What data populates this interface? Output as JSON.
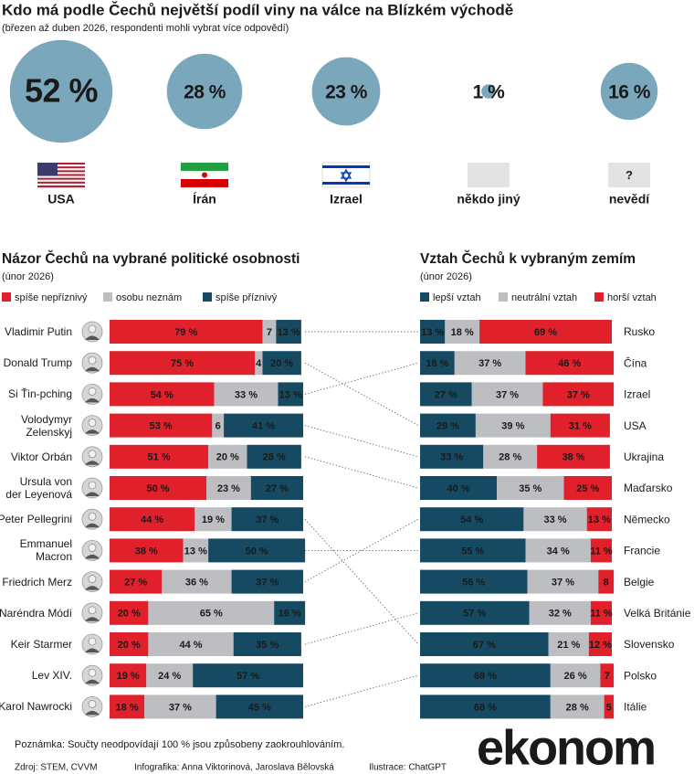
{
  "header": {
    "title": "Kdo má podle Čechů největší podíl viny na válce na Blízkém východě",
    "subtitle": "(březen až duben 2026, respondenti mohli vybrat více odpovědí)"
  },
  "chart_data": [
    {
      "type": "bubble",
      "categories": [
        "USA",
        "Írán",
        "Izrael",
        "někdo jiný",
        "nevědí"
      ],
      "values": [
        52,
        28,
        23,
        1,
        16
      ],
      "value_labels": [
        "52 %",
        "28 %",
        "23 %",
        "1 %",
        "16 %"
      ],
      "color": "#7ba7bd",
      "unknown_mark": "?"
    },
    {
      "type": "stacked-bar",
      "title": "Názor Čechů na vybrané politické osobnosti",
      "subtitle": "(únor 2026)",
      "categories": [
        "Vladimir Putin",
        "Donald Trump",
        "Si Ťin-pching",
        "Volodymyr\nZelenskyj",
        "Viktor Orbán",
        "Ursula von\nder Leyenová",
        "Peter Pellegrini",
        "Emmanuel\nMacron",
        "Friedrich Merz",
        "Naréndra Módí",
        "Keir Starmer",
        "Lev XIV.",
        "Karol Nawrocki"
      ],
      "series": [
        {
          "name": "spíše nepříznivý",
          "color": "#e0202a",
          "values": [
            79,
            75,
            54,
            53,
            51,
            50,
            44,
            38,
            27,
            20,
            20,
            19,
            18
          ],
          "value_labels": [
            "79 %",
            "75 %",
            "54 %",
            "53 %",
            "51 %",
            "50 %",
            "44 %",
            "38 %",
            "27 %",
            "20 %",
            "20 %",
            "19 %",
            "18 %"
          ]
        },
        {
          "name": "osobu neznám",
          "color": "#bcbec2",
          "values": [
            7,
            4,
            33,
            6,
            20,
            23,
            19,
            13,
            36,
            65,
            44,
            24,
            37
          ],
          "value_labels": [
            "7",
            "4",
            "33 %",
            "6",
            "20 %",
            "23 %",
            "19 %",
            "13 %",
            "36 %",
            "65 %",
            "44 %",
            "24 %",
            "37 %"
          ]
        },
        {
          "name": "spíše příznivý",
          "color": "#164a62",
          "values": [
            13,
            20,
            13,
            41,
            28,
            27,
            37,
            50,
            37,
            16,
            35,
            57,
            45
          ],
          "value_labels": [
            "13 %",
            "20 %",
            "13 %",
            "41 %",
            "28 %",
            "27 %",
            "37 %",
            "50 %",
            "37 %",
            "16 %",
            "35 %",
            "57 %",
            "45 %"
          ]
        }
      ]
    },
    {
      "type": "stacked-bar",
      "title": "Vztah Čechů k vybraným zemím",
      "subtitle": "(únor 2026)",
      "categories": [
        "Rusko",
        "Čína",
        "Izrael",
        "USA",
        "Ukrajina",
        "Maďarsko",
        "Německo",
        "Francie",
        "Belgie",
        "Velká Británie",
        "Slovensko",
        "Polsko",
        "Itálie"
      ],
      "series": [
        {
          "name": "lepší vztah",
          "color": "#164a62",
          "values": [
            13,
            18,
            27,
            29,
            33,
            40,
            54,
            55,
            56,
            57,
            67,
            68,
            68
          ],
          "value_labels": [
            "13 %",
            "18 %",
            "27 %",
            "29 %",
            "33 %",
            "40 %",
            "54 %",
            "55 %",
            "56 %",
            "57 %",
            "67 %",
            "68 %",
            "68 %"
          ]
        },
        {
          "name": "neutrální vztah",
          "color": "#bcbec2",
          "values": [
            18,
            37,
            37,
            39,
            28,
            35,
            33,
            34,
            37,
            32,
            21,
            26,
            28
          ],
          "value_labels": [
            "18 %",
            "37 %",
            "37 %",
            "39 %",
            "28 %",
            "35 %",
            "33 %",
            "34 %",
            "37 %",
            "32 %",
            "21 %",
            "26 %",
            "28 %"
          ]
        },
        {
          "name": "horší vztah",
          "color": "#e0202a",
          "values": [
            69,
            46,
            37,
            31,
            38,
            25,
            13,
            11,
            8,
            11,
            12,
            7,
            5
          ],
          "value_labels": [
            "69 %",
            "46 %",
            "37 %",
            "31 %",
            "38 %",
            "25 %",
            "13 %",
            "11 %",
            "8",
            "11 %",
            "12 %",
            "7",
            "5"
          ]
        }
      ]
    }
  ],
  "footer": {
    "note": "Poznámka: Součty neodpovídají 100 % jsou způsobeny zaokrouhlováním.",
    "source": "Zdroj: STEM, CVVM",
    "graphics": "Infografika: Anna Viktorinová, Jaroslava Bělovská",
    "illustration": "Ilustrace: ChatGPT",
    "logo": "ekonom"
  }
}
